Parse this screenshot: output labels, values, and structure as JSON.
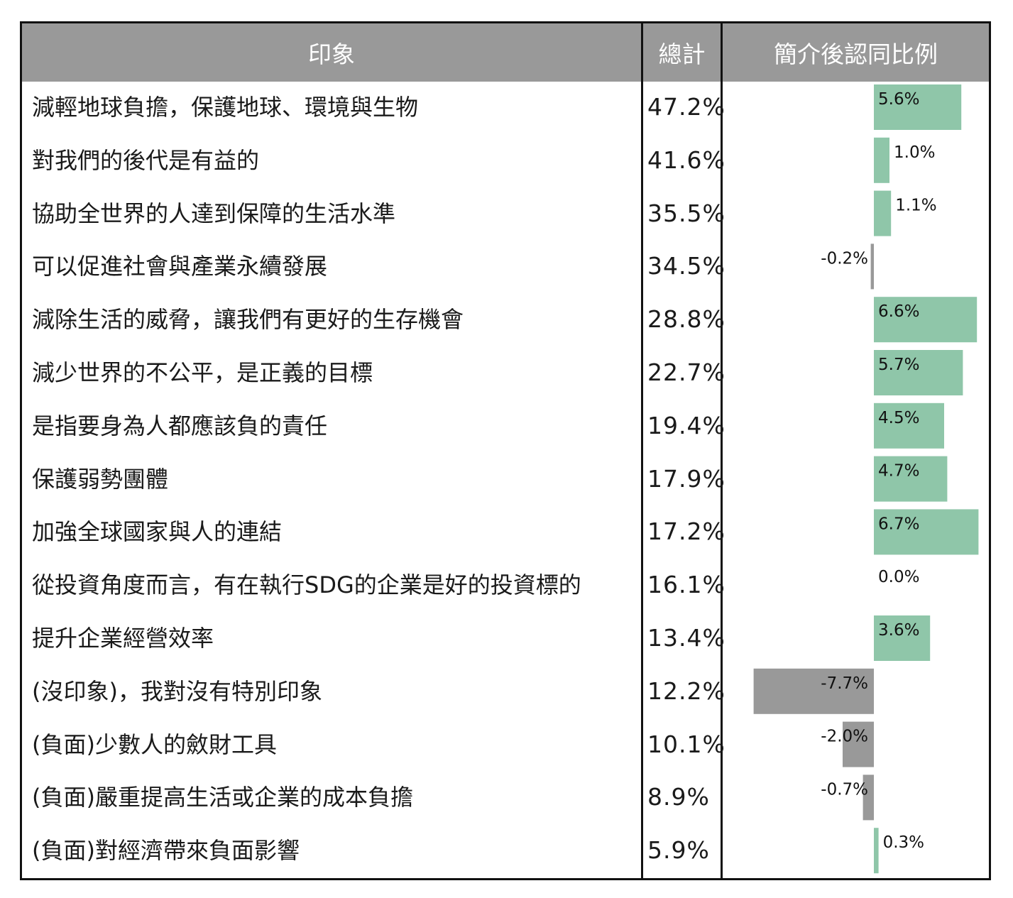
{
  "table": {
    "header": {
      "label": "印象",
      "total": "總計",
      "change": "簡介後認同比例"
    }
  },
  "chart_data": {
    "type": "bar",
    "title": "",
    "xlabel": "",
    "ylabel": "",
    "categories": [
      "減輕地球負擔，保護地球、環境與生物",
      "對我們的後代是有益的",
      "協助全世界的人達到保障的生活水準",
      "可以促進社會與產業永續發展",
      "減除生活的威脅，讓我們有更好的生存機會",
      "減少世界的不公平，是正義的目標",
      "是指要身為人都應該負的責任",
      "保護弱勢團體",
      "加強全球國家與人的連結",
      "從投資角度而言，有在執行SDG的企業是好的投資標的",
      "提升企業經營效率",
      "(沒印象)，我對沒有特別印象",
      "(負面)少數人的斂財工具",
      "(負面)嚴重提高生活或企業的成本負擔",
      "(負面)對經濟帶來負面影響"
    ],
    "totals": [
      "47.2%",
      "41.6%",
      "35.5%",
      "34.5%",
      "28.8%",
      "22.7%",
      "19.4%",
      "17.9%",
      "17.2%",
      "16.1%",
      "13.4%",
      "12.2%",
      "10.1%",
      "8.9%",
      "5.9%"
    ],
    "values": [
      5.6,
      1.0,
      1.1,
      -0.2,
      6.6,
      5.7,
      4.5,
      4.7,
      6.7,
      0.0,
      3.6,
      -7.7,
      -2.0,
      -0.7,
      0.3
    ],
    "value_labels": [
      "5.6%",
      "1.0%",
      "1.1%",
      "-0.2%",
      "6.6%",
      "5.7%",
      "4.5%",
      "4.7%",
      "6.7%",
      "0.0%",
      "3.6%",
      "-7.7%",
      "-2.0%",
      "-0.7%",
      "0.3%"
    ],
    "colors": {
      "positive": "#8fc6a9",
      "negative": "#999999",
      "header": "#999999"
    }
  }
}
